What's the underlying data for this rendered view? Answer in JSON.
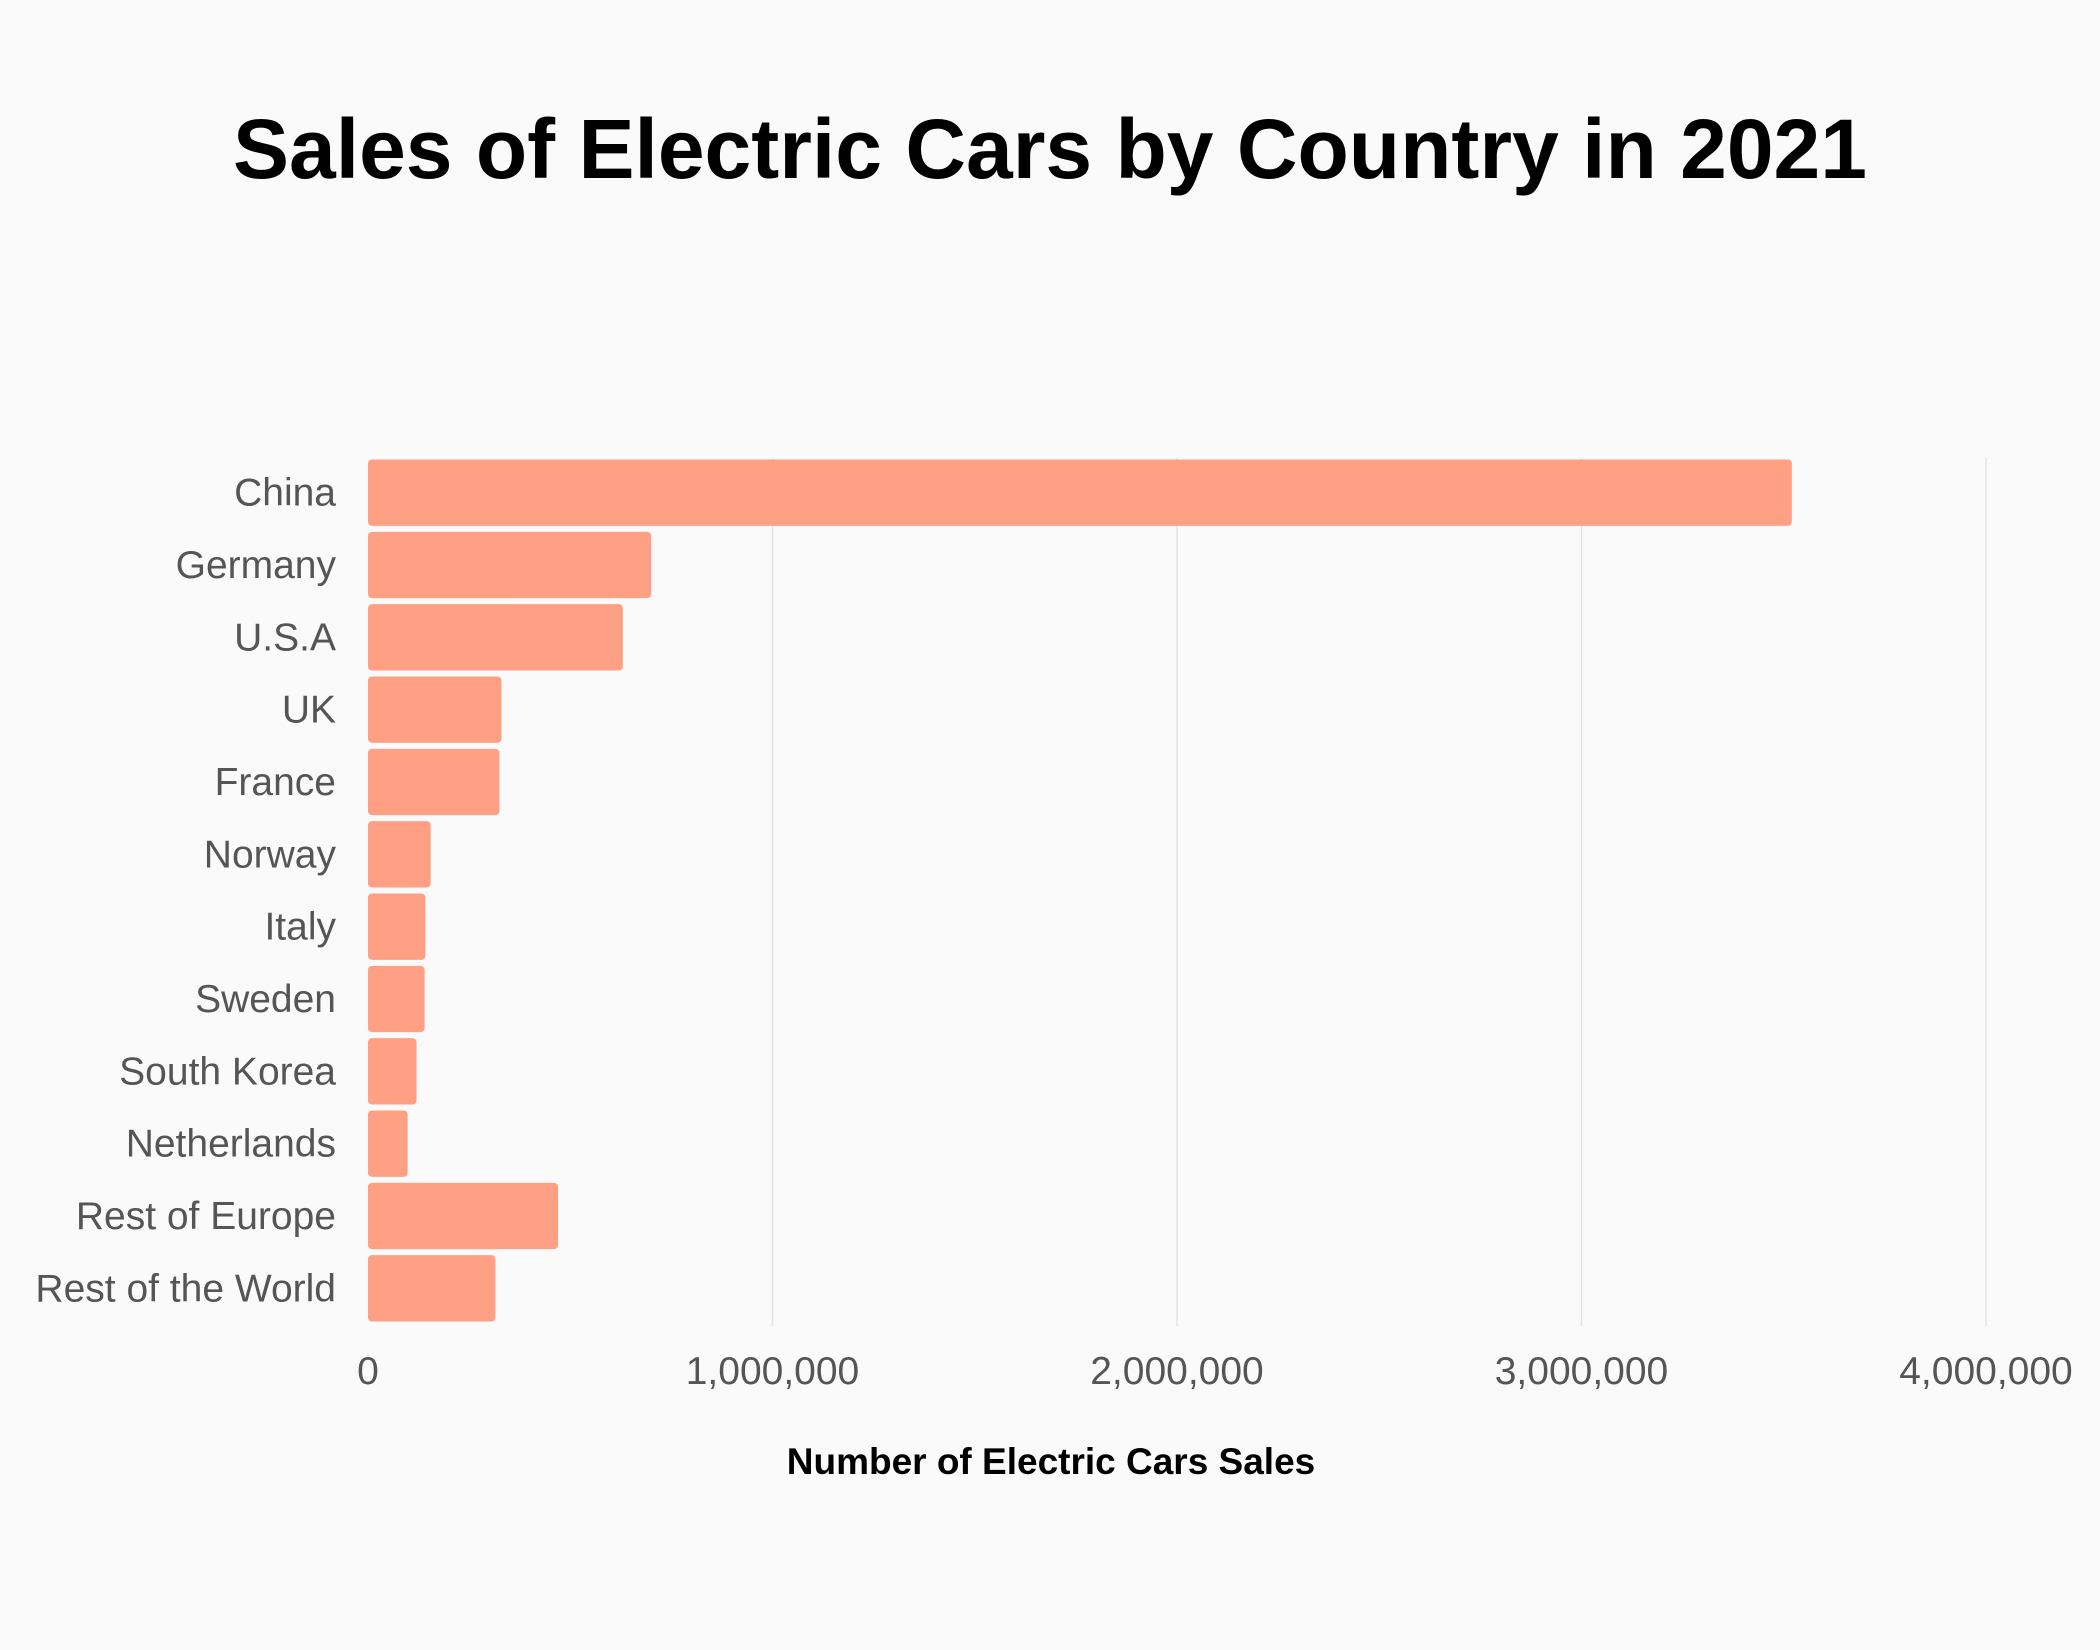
{
  "chart_data": {
    "type": "bar",
    "orientation": "horizontal",
    "title": "Sales of Electric Cars by Country in 2021",
    "xlabel": "Number of Electric Cars Sales",
    "ylabel": "",
    "categories": [
      "China",
      "Germany",
      "U.S.A",
      "UK",
      "France",
      "Norway",
      "Italy",
      "Sweden",
      "South Korea",
      "Netherlands",
      "Rest of Europe",
      "Rest of the World"
    ],
    "values": [
      3520000,
      700000,
      630000,
      330000,
      325000,
      155000,
      142000,
      140000,
      120000,
      98000,
      470000,
      315000
    ],
    "xlim": [
      0,
      4000000
    ],
    "ticks": [
      "0",
      "1,000,000",
      "2,000,000",
      "3,000,000",
      "4,000,000"
    ],
    "tick_values": [
      0,
      1000000,
      2000000,
      3000000,
      4000000
    ],
    "grid": "vertical",
    "legend": "none",
    "bar_color": "#ffa084",
    "background_color": "#fafafa"
  }
}
